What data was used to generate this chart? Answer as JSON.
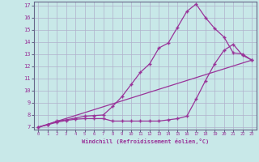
{
  "bg_color": "#c8e8e8",
  "grid_color": "#b0b0cc",
  "line_color": "#993399",
  "marker_color": "#993399",
  "xlabel": "Windchill (Refroidissement éolien,°C)",
  "xlim": [
    -0.5,
    23.5
  ],
  "ylim": [
    6.8,
    17.3
  ],
  "yticks": [
    7,
    8,
    9,
    10,
    11,
    12,
    13,
    14,
    15,
    16,
    17
  ],
  "xticks": [
    0,
    1,
    2,
    3,
    4,
    5,
    6,
    7,
    8,
    9,
    10,
    11,
    12,
    13,
    14,
    15,
    16,
    17,
    18,
    19,
    20,
    21,
    22,
    23
  ],
  "line1_x": [
    0,
    1,
    2,
    3,
    4,
    5,
    6,
    7,
    8,
    9,
    10,
    11,
    12,
    13,
    14,
    15,
    16,
    17,
    18,
    19,
    20,
    21,
    22,
    23
  ],
  "line1_y": [
    7.0,
    7.2,
    7.4,
    7.55,
    7.65,
    7.7,
    7.7,
    7.7,
    7.5,
    7.5,
    7.5,
    7.5,
    7.5,
    7.5,
    7.6,
    7.7,
    7.9,
    9.3,
    10.8,
    12.2,
    13.3,
    13.8,
    12.9,
    12.5
  ],
  "line2_x": [
    0,
    1,
    2,
    3,
    4,
    5,
    6,
    7,
    8,
    9,
    10,
    11,
    12,
    13,
    14,
    15,
    16,
    17,
    18,
    19,
    20,
    21,
    22,
    23
  ],
  "line2_y": [
    7.0,
    7.2,
    7.5,
    7.6,
    7.75,
    7.9,
    7.95,
    8.0,
    8.7,
    9.5,
    10.5,
    11.5,
    12.2,
    13.5,
    13.9,
    15.2,
    16.5,
    17.1,
    16.0,
    15.1,
    14.4,
    13.1,
    13.0,
    12.5
  ],
  "line3_x": [
    0,
    23
  ],
  "line3_y": [
    7.0,
    12.5
  ]
}
